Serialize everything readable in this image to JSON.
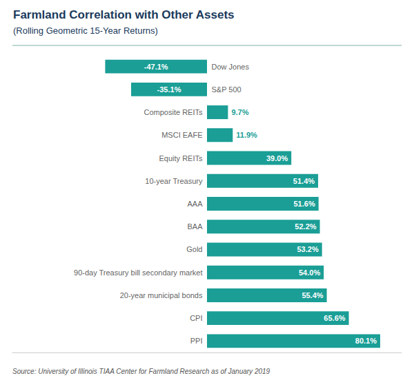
{
  "chart_data": {
    "type": "bar",
    "orientation": "horizontal",
    "title": "Farmland Correlation with Other Assets",
    "subtitle": "(Rolling Geometric 15-Year Returns)",
    "annotations": [
      "Source: University of Illinois TIAA Center for Farmland Research as of January 2019"
    ],
    "categories": [
      "Dow Jones",
      "S&P 500",
      "Composite REITs",
      "MSCI EAFE",
      "Equity REITs",
      "10-year Treasury",
      "AAA",
      "BAA",
      "Gold",
      "90-day Treasury bill secondary market",
      "20-year municipal bonds",
      "CPI",
      "PPI"
    ],
    "values": [
      -47.1,
      -35.1,
      9.7,
      11.9,
      39.0,
      51.4,
      51.6,
      52.2,
      53.2,
      54.0,
      55.4,
      65.6,
      80.1
    ],
    "value_labels": [
      "-47.1%",
      "-35.1%",
      "9.7%",
      "11.9%",
      "39.0%",
      "51.4%",
      "51.6%",
      "52.2%",
      "53.2%",
      "54.0%",
      "55.4%",
      "65.6%",
      "80.1%"
    ],
    "color": "#1a9e96",
    "xlim": [
      -90,
      90
    ],
    "data_labels": true,
    "tick_labels": false,
    "grid": false
  }
}
